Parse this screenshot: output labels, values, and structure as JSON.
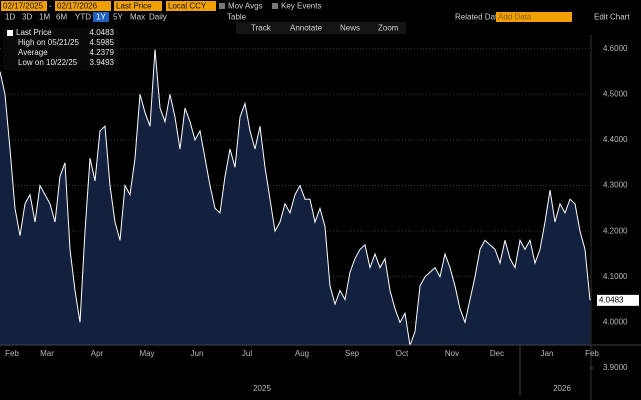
{
  "toolbar": {
    "date_from": "02/17/2025",
    "separator": "-",
    "date_to": "02/17/2026",
    "field": "Last Price",
    "currency": "Local CCY",
    "mov_avgs": "Mov Avgs",
    "key_events": "Key Events",
    "periods": [
      "1D",
      "3D",
      "1M",
      "6M",
      "YTD",
      "1Y",
      "5Y",
      "Max"
    ],
    "frequency": "Daily",
    "table": "Table",
    "related": "Related Dat",
    "add_data": "Add Data",
    "edit_chart": "Edit Chart",
    "tools": [
      "Track",
      "Annotate",
      "News",
      "Zoom"
    ]
  },
  "legend": [
    {
      "label": "Last Price",
      "value": "4.0483"
    },
    {
      "label": "High on 05/21/25",
      "value": "4.5985"
    },
    {
      "label": "Average",
      "value": "4.2379"
    },
    {
      "label": "Low on 10/22/25",
      "value": "3.9493"
    }
  ],
  "chart_data": {
    "type": "area",
    "color": "#ffffff",
    "fill": "#13213f",
    "grid": true,
    "categories": [
      null,
      null,
      "Feb",
      null,
      null,
      null,
      null,
      null,
      null,
      "Mar",
      null,
      null,
      null,
      null,
      null,
      null,
      null,
      null,
      null,
      "Apr",
      null,
      null,
      null,
      null,
      null,
      null,
      null,
      null,
      null,
      "May",
      null,
      null,
      null,
      null,
      null,
      null,
      null,
      null,
      null,
      "Jun",
      null,
      null,
      null,
      null,
      null,
      null,
      null,
      null,
      null,
      "Jul",
      null,
      null,
      null,
      null,
      null,
      null,
      null,
      null,
      null,
      null,
      "Aug",
      null,
      null,
      null,
      null,
      null,
      null,
      null,
      null,
      null,
      "Sep",
      null,
      null,
      null,
      null,
      null,
      null,
      null,
      null,
      null,
      "Oct",
      null,
      null,
      null,
      null,
      null,
      null,
      null,
      null,
      null,
      "Nov",
      null,
      null,
      null,
      null,
      null,
      null,
      null,
      null,
      "Dec",
      null,
      null,
      null,
      null,
      null,
      null,
      null,
      null,
      null,
      "Jan",
      null,
      null,
      null,
      null,
      null,
      null,
      null,
      null,
      "Feb"
    ],
    "values": [
      4.55,
      4.5,
      4.38,
      4.25,
      4.19,
      4.26,
      4.28,
      4.22,
      4.3,
      4.28,
      4.26,
      4.22,
      4.32,
      4.35,
      4.16,
      4.07,
      4.0,
      4.2,
      4.36,
      4.31,
      4.42,
      4.43,
      4.3,
      4.22,
      4.18,
      4.3,
      4.28,
      4.36,
      4.5,
      4.46,
      4.43,
      4.5985,
      4.47,
      4.44,
      4.5,
      4.45,
      4.38,
      4.47,
      4.44,
      4.4,
      4.42,
      4.36,
      4.3,
      4.25,
      4.24,
      4.32,
      4.38,
      4.34,
      4.45,
      4.48,
      4.42,
      4.38,
      4.43,
      4.34,
      4.27,
      4.2,
      4.22,
      4.26,
      4.24,
      4.28,
      4.3,
      4.27,
      4.27,
      4.22,
      4.25,
      4.21,
      4.08,
      4.04,
      4.07,
      4.05,
      4.11,
      4.14,
      4.16,
      4.17,
      4.12,
      4.15,
      4.12,
      4.14,
      4.07,
      4.03,
      4.0,
      4.02,
      3.9493,
      3.98,
      4.08,
      4.1,
      4.11,
      4.12,
      4.1,
      4.15,
      4.12,
      4.08,
      4.03,
      4.0,
      4.05,
      4.1,
      4.16,
      4.18,
      4.17,
      4.16,
      4.13,
      4.18,
      4.14,
      4.12,
      4.18,
      4.16,
      4.18,
      4.13,
      4.16,
      4.22,
      4.29,
      4.22,
      4.26,
      4.24,
      4.27,
      4.26,
      4.2,
      4.16,
      4.0483
    ],
    "ylim": [
      3.9,
      4.63
    ],
    "yticks": [
      {
        "value": 3.9,
        "label": "3.9000"
      },
      {
        "value": 4.0,
        "label": "4.0000"
      },
      {
        "value": 4.1,
        "label": "4.1000"
      },
      {
        "value": 4.2,
        "label": "4.2000"
      },
      {
        "value": 4.3,
        "label": "4.3000"
      },
      {
        "value": 4.4,
        "label": "4.4000"
      },
      {
        "value": 4.5,
        "label": "4.5000"
      },
      {
        "value": 4.6,
        "label": "4.6000"
      }
    ],
    "year_labels": [
      "2025",
      "2026"
    ]
  }
}
